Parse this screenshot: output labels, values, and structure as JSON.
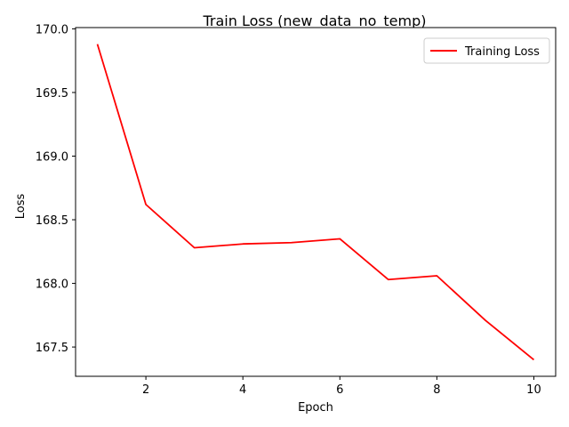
{
  "chart_data": {
    "type": "line",
    "title": "Train Loss (new_data_no_temp)",
    "xlabel": "Epoch",
    "ylabel": "Loss",
    "xlim": [
      0.55,
      10.45
    ],
    "ylim": [
      167.27,
      170.01
    ],
    "xticks": [
      2,
      4,
      6,
      8,
      10
    ],
    "yticks": [
      167.5,
      168.0,
      168.5,
      169.0,
      169.5,
      170.0
    ],
    "ytick_labels": [
      "167.5",
      "168.0",
      "168.5",
      "169.0",
      "169.5",
      "170.0"
    ],
    "grid": false,
    "legend_position": "top-right",
    "series": [
      {
        "name": "Training Loss",
        "color": "#ff0000",
        "x": [
          1,
          2,
          3,
          4,
          5,
          6,
          7,
          8,
          9,
          10
        ],
        "y": [
          169.88,
          168.62,
          168.28,
          168.31,
          168.32,
          168.35,
          168.03,
          168.06,
          167.71,
          167.4
        ]
      }
    ]
  }
}
